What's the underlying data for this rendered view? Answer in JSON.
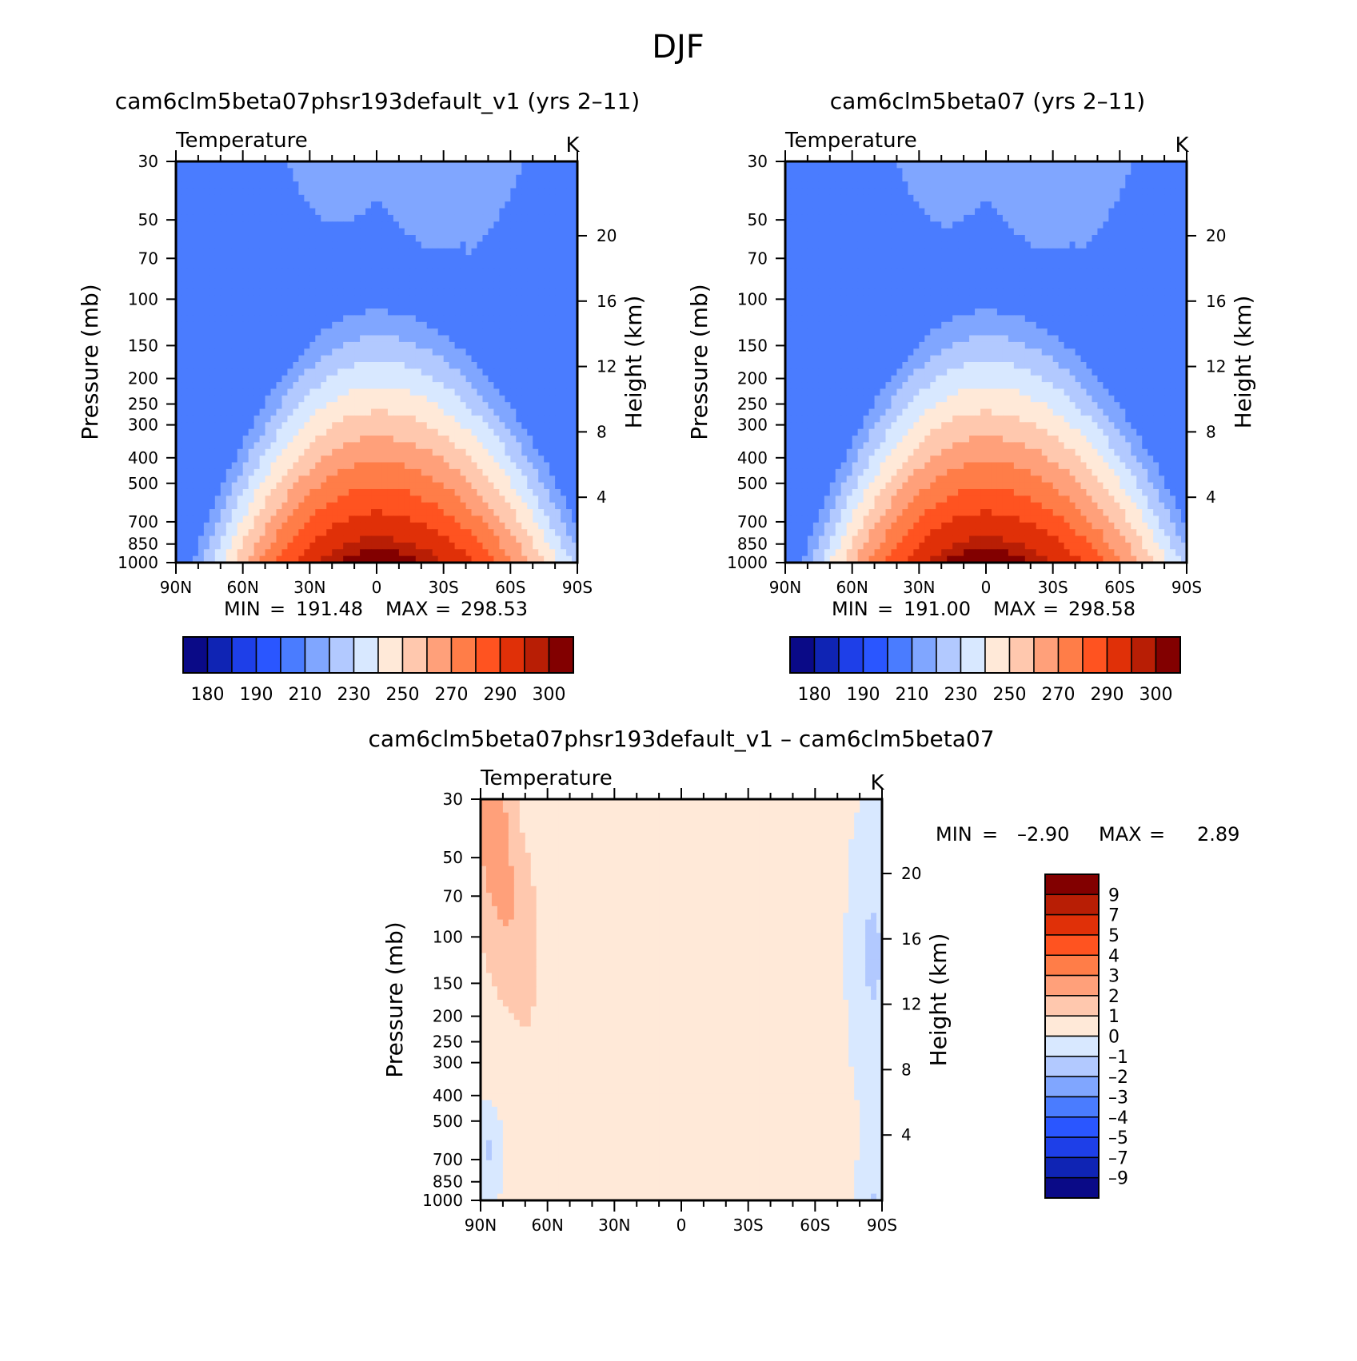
{
  "figure_title": "DJF",
  "chart_data": [
    {
      "id": "test",
      "type": "contour",
      "title": "cam6clm5beta07phsr193default_v1 (yrs 2–11)",
      "variable": "Temperature",
      "units": "K",
      "ylabel_left": "Pressure  (mb)",
      "ylabel_right": "Height  (km)",
      "x_ticks": [
        "90N",
        "60N",
        "30N",
        "0",
        "30S",
        "60S",
        "90S"
      ],
      "pressure_ticks": [
        30,
        50,
        70,
        100,
        150,
        200,
        250,
        300,
        400,
        500,
        700,
        850,
        1000
      ],
      "height_ticks": [
        4,
        8,
        12,
        16,
        20
      ],
      "ylim_mb": [
        1000,
        30
      ],
      "min_label": "MIN",
      "max_label": "MAX",
      "min": "191.48",
      "max": "298.53",
      "colorbar_levels": [
        175,
        180,
        185,
        190,
        200,
        210,
        220,
        230,
        240,
        250,
        260,
        270,
        280,
        290,
        295,
        300
      ],
      "colorbar_labels": [
        "180",
        "190",
        "210",
        "230",
        "250",
        "270",
        "290",
        "300"
      ]
    },
    {
      "id": "control",
      "type": "contour",
      "title": "cam6clm5beta07 (yrs 2–11)",
      "variable": "Temperature",
      "units": "K",
      "ylabel_left": "Pressure  (mb)",
      "ylabel_right": "Height  (km)",
      "x_ticks": [
        "90N",
        "60N",
        "30N",
        "0",
        "30S",
        "60S",
        "90S"
      ],
      "pressure_ticks": [
        30,
        50,
        70,
        100,
        150,
        200,
        250,
        300,
        400,
        500,
        700,
        850,
        1000
      ],
      "height_ticks": [
        4,
        8,
        12,
        16,
        20
      ],
      "ylim_mb": [
        1000,
        30
      ],
      "min_label": "MIN",
      "max_label": "MAX",
      "min": "191.00",
      "max": "298.58",
      "colorbar_levels": [
        175,
        180,
        185,
        190,
        200,
        210,
        220,
        230,
        240,
        250,
        260,
        270,
        280,
        290,
        295,
        300
      ],
      "colorbar_labels": [
        "180",
        "190",
        "210",
        "230",
        "250",
        "270",
        "290",
        "300"
      ]
    },
    {
      "id": "diff",
      "type": "contour",
      "title": "cam6clm5beta07phsr193default_v1  –  cam6clm5beta07",
      "variable": "Temperature",
      "units": "K",
      "ylabel_left": "Pressure  (mb)",
      "ylabel_right": "Height  (km)",
      "x_ticks": [
        "90N",
        "60N",
        "30N",
        "0",
        "30S",
        "60S",
        "90S"
      ],
      "pressure_ticks": [
        30,
        50,
        70,
        100,
        150,
        200,
        250,
        300,
        400,
        500,
        700,
        850,
        1000
      ],
      "height_ticks": [
        4,
        8,
        12,
        16,
        20
      ],
      "ylim_mb": [
        1000,
        30
      ],
      "min_label": "MIN",
      "max_label": "MAX",
      "min": "–2.90",
      "max": "2.89",
      "colorbar_levels": [
        -9,
        -7,
        -5,
        -4,
        -3,
        -2,
        -1,
        0,
        1,
        2,
        3,
        4,
        5,
        7,
        9
      ],
      "colorbar_labels": [
        "9",
        "7",
        "5",
        "4",
        "3",
        "2",
        "1",
        "0",
        "–1",
        "–2",
        "–3",
        "–4",
        "–5",
        "–7",
        "–9"
      ]
    }
  ],
  "colors": {
    "temperature_palette": [
      "#0a0a87",
      "#0f24b4",
      "#1e3fe8",
      "#2a56ff",
      "#4a7cff",
      "#80a6ff",
      "#b2c9ff",
      "#d8e8ff",
      "#ffe9d8",
      "#ffc8ae",
      "#ffa07a",
      "#ff7d48",
      "#ff5320",
      "#e03008",
      "#b81e05",
      "#820000"
    ],
    "diff_palette": [
      "#820000",
      "#b81e05",
      "#e03008",
      "#ff5320",
      "#ff7d48",
      "#ffa07a",
      "#ffc8ae",
      "#ffe9d8",
      "#d8e8ff",
      "#b2c9ff",
      "#80a6ff",
      "#4a7cff",
      "#2a56ff",
      "#1e3fe8",
      "#0f24b4",
      "#0a0a87"
    ]
  }
}
